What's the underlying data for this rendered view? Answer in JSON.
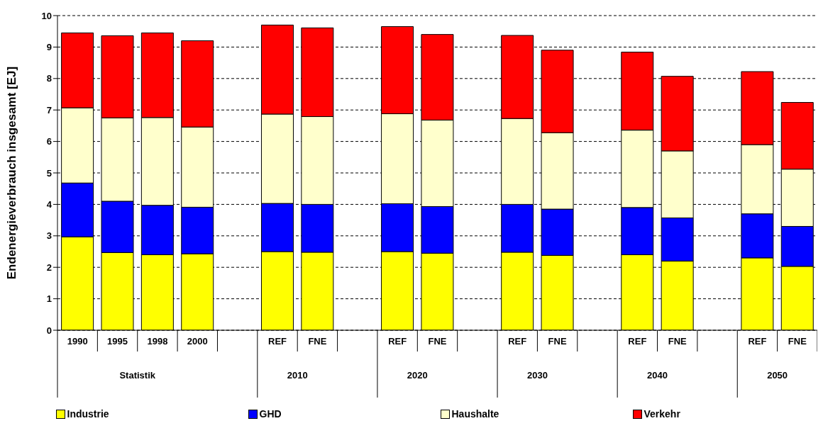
{
  "chart_data": {
    "type": "bar",
    "stacked": true,
    "ylabel": "Endenergieverbrauch insgesamt [EJ]",
    "categories": [
      "1990",
      "1995",
      "1998",
      "2000",
      null,
      "REF",
      "FNE",
      null,
      "REF",
      "FNE",
      null,
      "REF",
      "FNE",
      null,
      "REF",
      "FNE",
      null,
      "REF",
      "FNE"
    ],
    "annotations": [
      "Statistik",
      "2010",
      "2020",
      "2030",
      "2040",
      "2050"
    ],
    "series": [
      {
        "name": "Industrie",
        "color": "#ffff00",
        "values": [
          2.97,
          2.47,
          2.4,
          2.43,
          null,
          2.5,
          2.48,
          null,
          2.5,
          2.45,
          null,
          2.48,
          2.38,
          null,
          2.4,
          2.2,
          null,
          2.3,
          2.03
        ]
      },
      {
        "name": "GHD",
        "color": "#0000ff",
        "values": [
          1.71,
          1.63,
          1.57,
          1.48,
          null,
          1.53,
          1.52,
          null,
          1.52,
          1.48,
          null,
          1.52,
          1.47,
          null,
          1.5,
          1.37,
          null,
          1.4,
          1.27
        ]
      },
      {
        "name": "Haushalte",
        "color": "#ffffcc",
        "values": [
          2.39,
          2.65,
          2.79,
          2.55,
          null,
          2.84,
          2.79,
          null,
          2.86,
          2.75,
          null,
          2.73,
          2.43,
          null,
          2.46,
          2.13,
          null,
          2.2,
          1.82
        ]
      },
      {
        "name": "Verkehr",
        "color": "#ff0000",
        "values": [
          2.38,
          2.61,
          2.69,
          2.74,
          null,
          2.83,
          2.82,
          null,
          2.77,
          2.72,
          null,
          2.64,
          2.62,
          null,
          2.48,
          2.37,
          null,
          2.32,
          2.12
        ]
      }
    ],
    "ylim": [
      0,
      10
    ],
    "yticks": [
      0,
      1,
      2,
      3,
      4,
      5,
      6,
      7,
      8,
      9,
      10
    ],
    "grid": "y",
    "legend": "bottom"
  }
}
